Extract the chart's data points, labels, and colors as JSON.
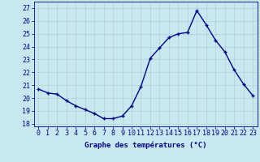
{
  "hours": [
    0,
    1,
    2,
    3,
    4,
    5,
    6,
    7,
    8,
    9,
    10,
    11,
    12,
    13,
    14,
    15,
    16,
    17,
    18,
    19,
    20,
    21,
    22,
    23
  ],
  "temps": [
    20.7,
    20.4,
    20.3,
    19.8,
    19.4,
    19.1,
    18.8,
    18.4,
    18.4,
    18.6,
    19.4,
    20.9,
    23.1,
    23.9,
    24.7,
    25.0,
    25.1,
    26.8,
    25.7,
    24.5,
    23.6,
    22.2,
    21.1,
    20.2
  ],
  "line_color": "#00008b",
  "marker": "+",
  "bg_color": "#c8e8f0",
  "grid_color": "#b0ccd8",
  "xlabel": "Graphe des températures (°C)",
  "xlabel_color": "#00008b",
  "ylim": [
    17.8,
    27.5
  ],
  "xlim": [
    -0.5,
    23.5
  ],
  "xtick_labels": [
    "0",
    "1",
    "2",
    "3",
    "4",
    "5",
    "6",
    "7",
    "8",
    "9",
    "10",
    "11",
    "12",
    "13",
    "14",
    "15",
    "16",
    "17",
    "18",
    "19",
    "20",
    "21",
    "22",
    "23"
  ],
  "yticks": [
    18,
    19,
    20,
    21,
    22,
    23,
    24,
    25,
    26,
    27
  ],
  "tick_color": "#00008b",
  "axis_color": "#00008b",
  "label_fontsize": 6.5,
  "tick_fontsize": 6,
  "linewidth": 1.0,
  "markersize": 3.5,
  "markeredgewidth": 1.0
}
